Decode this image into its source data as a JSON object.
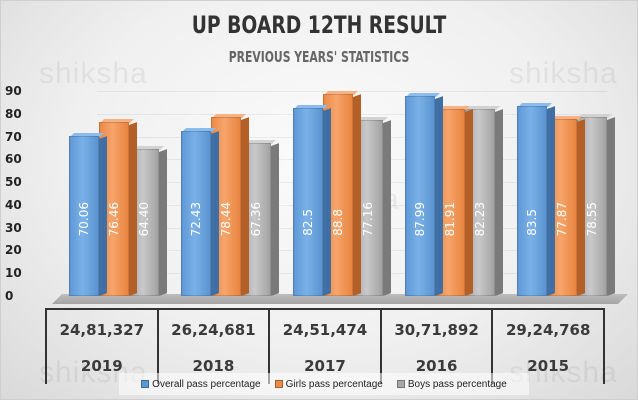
{
  "header": {
    "title": "UP BOARD 12TH RESULT",
    "subtitle": "PREVIOUS YEARS' STATISTICS",
    "watermark": "shiksha"
  },
  "colors": {
    "overall": "#5f98d6",
    "girls": "#ec8a48",
    "boys": "#a7a7a7"
  },
  "chart_data": {
    "type": "bar",
    "title": "UP BOARD 12TH RESULT",
    "subtitle": "PREVIOUS YEARS' STATISTICS",
    "categories": [
      "2019",
      "2018",
      "2017",
      "2016",
      "2015"
    ],
    "students_appeared": [
      "24,81,327",
      "26,24,681",
      "24,51,474",
      "30,71,892",
      "29,24,768"
    ],
    "series": [
      {
        "name": "Overall pass percentage",
        "values": [
          70.06,
          72.43,
          82.5,
          87.99,
          83.5
        ],
        "labels": [
          "70.06",
          "72.43",
          "82.5",
          "87.99",
          "83.5"
        ]
      },
      {
        "name": "Girls pass percentage",
        "values": [
          76.46,
          78.44,
          88.8,
          81.91,
          77.87
        ],
        "labels": [
          "76.46",
          "78.44",
          "88.8",
          "81.91",
          "77.87"
        ]
      },
      {
        "name": "Boys pass percentage",
        "values": [
          64.4,
          67.36,
          77.16,
          82.23,
          78.55
        ],
        "labels": [
          "64.40",
          "67.36",
          "77.16",
          "82.23",
          "78.55"
        ]
      }
    ],
    "xlabel": "",
    "ylabel": "",
    "ylim": [
      0,
      90
    ],
    "yticks": [
      "90",
      "80",
      "70",
      "60",
      "50",
      "40",
      "30",
      "20",
      "10",
      "0"
    ],
    "grid": true,
    "legend_position": "bottom",
    "style": "3d-clustered-column"
  },
  "legend": [
    {
      "label": "Overall pass percentage"
    },
    {
      "label": "Girls pass percentage"
    },
    {
      "label": "Boys pass percentage"
    }
  ]
}
